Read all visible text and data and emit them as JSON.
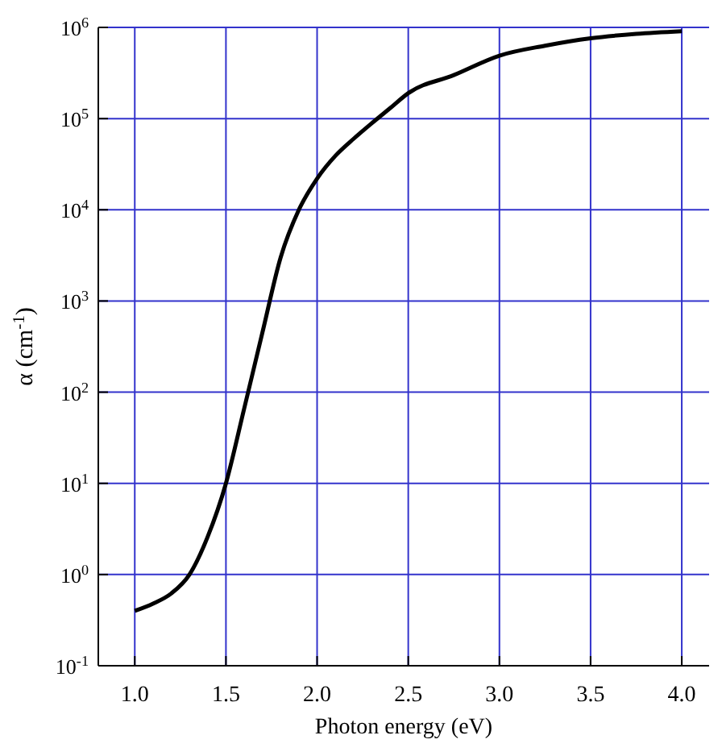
{
  "chart_data": {
    "type": "line",
    "xlabel": "Photon energy (eV)",
    "ylabel": "α (cm$^{-1}$)",
    "x": [
      1.0,
      1.1,
      1.2,
      1.3,
      1.4,
      1.5,
      1.6,
      1.7,
      1.8,
      1.9,
      2.0,
      2.1,
      2.2,
      2.3,
      2.4,
      2.5,
      2.75,
      3.0,
      3.25,
      3.5,
      3.75,
      4.0
    ],
    "series": [
      {
        "color": "#000000",
        "values": [
          0.4,
          0.48,
          0.62,
          1.0,
          2.6,
          10,
          66,
          450,
          3000,
          10000,
          22000,
          39000,
          60000,
          89000,
          130000,
          190000,
          300000,
          490000,
          630000,
          760000,
          850000,
          910000
        ]
      }
    ],
    "xlim": [
      0.8,
      4.15
    ],
    "xticks": [
      {
        "value": 1,
        "label": "1.0"
      },
      {
        "value": 1.5,
        "label": "1.5"
      },
      {
        "value": 2,
        "label": "2.0"
      },
      {
        "value": 2.5,
        "label": "2.5"
      },
      {
        "value": 3,
        "label": "3.0"
      },
      {
        "value": 3.5,
        "label": "3.5"
      },
      {
        "value": 4,
        "label": "4.0"
      }
    ],
    "ylim": [
      0.1,
      1000000
    ],
    "yticks": [
      {
        "value": 0.1,
        "label": "10$^{-1}$"
      },
      {
        "value": 1,
        "label": "10$^{0}$"
      },
      {
        "value": 10,
        "label": "10$^{1}$"
      },
      {
        "value": 100,
        "label": "10$^{2}$"
      },
      {
        "value": 1000,
        "label": "10$^{3}$"
      },
      {
        "value": 10000,
        "label": "10$^{4}$"
      },
      {
        "value": 100000,
        "label": "10$^{5}$"
      },
      {
        "value": 1000000,
        "label": "10$^{6}$"
      }
    ],
    "log": "y",
    "grid": true,
    "marker": "none",
    "line_style": "solid"
  }
}
